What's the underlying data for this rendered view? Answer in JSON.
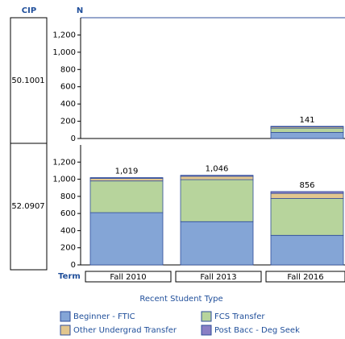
{
  "labels": {
    "row_label": "CIP",
    "value_label": "N",
    "x_label": "Term",
    "legend_title": "Recent Student Type"
  },
  "chart_data": [
    {
      "type": "bar",
      "stacked": true,
      "panel": "50.1001",
      "categories": [
        "Fall 2010",
        "Fall 2013",
        "Fall 2016"
      ],
      "series": [
        {
          "name": "Beginner - FTIC",
          "color": "#84a5d6",
          "values": [
            null,
            null,
            70
          ]
        },
        {
          "name": "FCS Transfer",
          "color": "#b7d49c",
          "values": [
            null,
            null,
            50
          ]
        },
        {
          "name": "Other Undergrad Transfer",
          "color": "#e2c68e",
          "values": [
            null,
            null,
            15
          ]
        },
        {
          "name": "Post Bacc - Deg Seek",
          "color": "#8a7fc4",
          "values": [
            null,
            null,
            6
          ]
        }
      ],
      "totals": [
        null,
        null,
        141
      ],
      "total_labels": [
        null,
        null,
        "141"
      ],
      "ylim": [
        0,
        1400
      ],
      "yticks": [
        0,
        200,
        400,
        600,
        800,
        {
          "value": 1000,
          "label": "1,000"
        },
        {
          "value": 1200,
          "label": "1,200"
        }
      ]
    },
    {
      "type": "bar",
      "stacked": true,
      "panel": "52.0907",
      "categories": [
        "Fall 2010",
        "Fall 2013",
        "Fall 2016"
      ],
      "series": [
        {
          "name": "Beginner - FTIC",
          "color": "#84a5d6",
          "values": [
            610,
            505,
            345
          ]
        },
        {
          "name": "FCS Transfer",
          "color": "#b7d49c",
          "values": [
            370,
            490,
            430
          ]
        },
        {
          "name": "Other Undergrad Transfer",
          "color": "#e2c68e",
          "values": [
            30,
            40,
            60
          ]
        },
        {
          "name": "Post Bacc - Deg Seek",
          "color": "#8a7fc4",
          "values": [
            9,
            11,
            21
          ]
        }
      ],
      "totals": [
        1019,
        1046,
        856
      ],
      "total_labels": [
        "1,019",
        "1,046",
        "856"
      ],
      "ylim": [
        0,
        1400
      ],
      "yticks": [
        0,
        200,
        400,
        600,
        800,
        {
          "value": 1000,
          "label": "1,000"
        },
        {
          "value": 1200,
          "label": "1,200"
        }
      ]
    }
  ]
}
